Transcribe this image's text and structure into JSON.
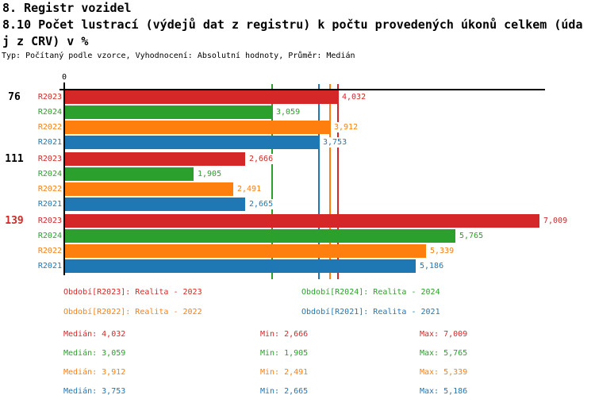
{
  "header": {
    "title1": "8. Registr vozidel",
    "title2_lines": [
      "8.10 Počet lustrací (výdejů dat z registru) k počtu provedených úkonů celkem (úda",
      "j z CRV) v %"
    ],
    "subtitle": "Typ: Počítaný podle vzorce, Vyhodnocení: Absolutní hodnoty, Průměr: Medián"
  },
  "chart_data": {
    "type": "bar",
    "orientation": "horizontal",
    "title": "8.10 Počet lustrací (výdejů dat z registru) k počtu provedených úkonů celkem (údaj z CRV) v %",
    "categories": [
      "76",
      "111",
      "139"
    ],
    "category_label_colors": [
      "#000000",
      "#000000",
      "#d62728"
    ],
    "x_axis": {
      "zero_label": "0",
      "min": 0,
      "max": 7100
    },
    "legend_position": "bottom",
    "grid": false,
    "series": [
      {
        "name": "R2023",
        "color": "#d62728",
        "values": [
          4032,
          2666,
          7009
        ],
        "value_labels": [
          "4,032",
          "2,666",
          "7,009"
        ],
        "median": 4032
      },
      {
        "name": "R2024",
        "color": "#2ca02c",
        "values": [
          3059,
          1905,
          5765
        ],
        "value_labels": [
          "3,059",
          "1,905",
          "5,765"
        ],
        "median": 3059
      },
      {
        "name": "R2022",
        "color": "#ff7f0e",
        "values": [
          3912,
          2491,
          5339
        ],
        "value_labels": [
          "3,912",
          "2,491",
          "5,339"
        ],
        "median": 3912
      },
      {
        "name": "R2021",
        "color": "#1f77b4",
        "values": [
          3753,
          2665,
          5186
        ],
        "value_labels": [
          "3,753",
          "2,665",
          "5,186"
        ],
        "median": 3753
      }
    ],
    "median_lines": [
      {
        "series": "R2024",
        "value": 3059,
        "color": "#2ca02c"
      },
      {
        "series": "R2021",
        "value": 3753,
        "color": "#1f77b4"
      },
      {
        "series": "R2022",
        "value": 3912,
        "color": "#ff7f0e"
      },
      {
        "series": "R2023",
        "value": 4032,
        "color": "#d62728"
      }
    ]
  },
  "legend": {
    "items": [
      {
        "series": "R2023",
        "text": "Období[R2023]: Realita - 2023",
        "color": "#d62728",
        "row": 0,
        "col": 0
      },
      {
        "series": "R2024",
        "text": "Období[R2024]: Realita - 2024",
        "color": "#2ca02c",
        "row": 0,
        "col": 1
      },
      {
        "series": "R2022",
        "text": "Období[R2022]: Realita - 2022",
        "color": "#ff7f0e",
        "row": 1,
        "col": 0
      },
      {
        "series": "R2021",
        "text": "Období[R2021]: Realita - 2021",
        "color": "#1f77b4",
        "row": 1,
        "col": 1
      }
    ]
  },
  "stats": {
    "labels": {
      "median": "Medián",
      "min": "Min",
      "max": "Max"
    },
    "rows": [
      {
        "series": "R2023",
        "color": "#d62728",
        "median": "4,032",
        "min": "2,666",
        "max": "7,009"
      },
      {
        "series": "R2024",
        "color": "#2ca02c",
        "median": "3,059",
        "min": "1,905",
        "max": "5,765"
      },
      {
        "series": "R2022",
        "color": "#ff7f0e",
        "median": "3,912",
        "min": "2,491",
        "max": "5,339"
      },
      {
        "series": "R2021",
        "color": "#1f77b4",
        "median": "3,753",
        "min": "2,665",
        "max": "5,186"
      }
    ]
  }
}
